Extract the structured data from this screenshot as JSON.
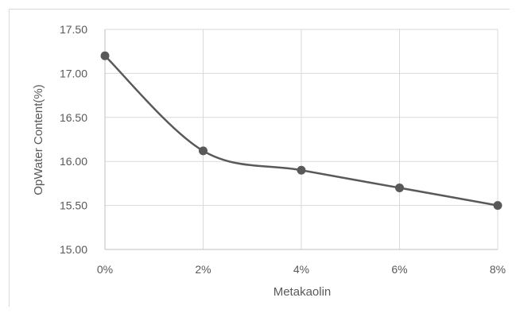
{
  "chart_data": {
    "type": "line",
    "title": "",
    "xlabel": "Metakaolin",
    "ylabel": "OpWater Content(%)",
    "categories": [
      "0%",
      "2%",
      "4%",
      "6%",
      "8%"
    ],
    "series": [
      {
        "values": [
          17.2,
          16.12,
          15.9,
          15.7,
          15.5
        ]
      }
    ],
    "ylim": [
      15.0,
      17.5
    ],
    "yticks": [
      "15.00",
      "15.50",
      "16.00",
      "16.50",
      "17.00",
      "17.50"
    ],
    "grid": true,
    "smooth": true,
    "legend": "none",
    "colors": {
      "line": "#595959",
      "marker": "#595959",
      "grid": "#d9d9d9",
      "axis": "#bfbfbf"
    }
  }
}
